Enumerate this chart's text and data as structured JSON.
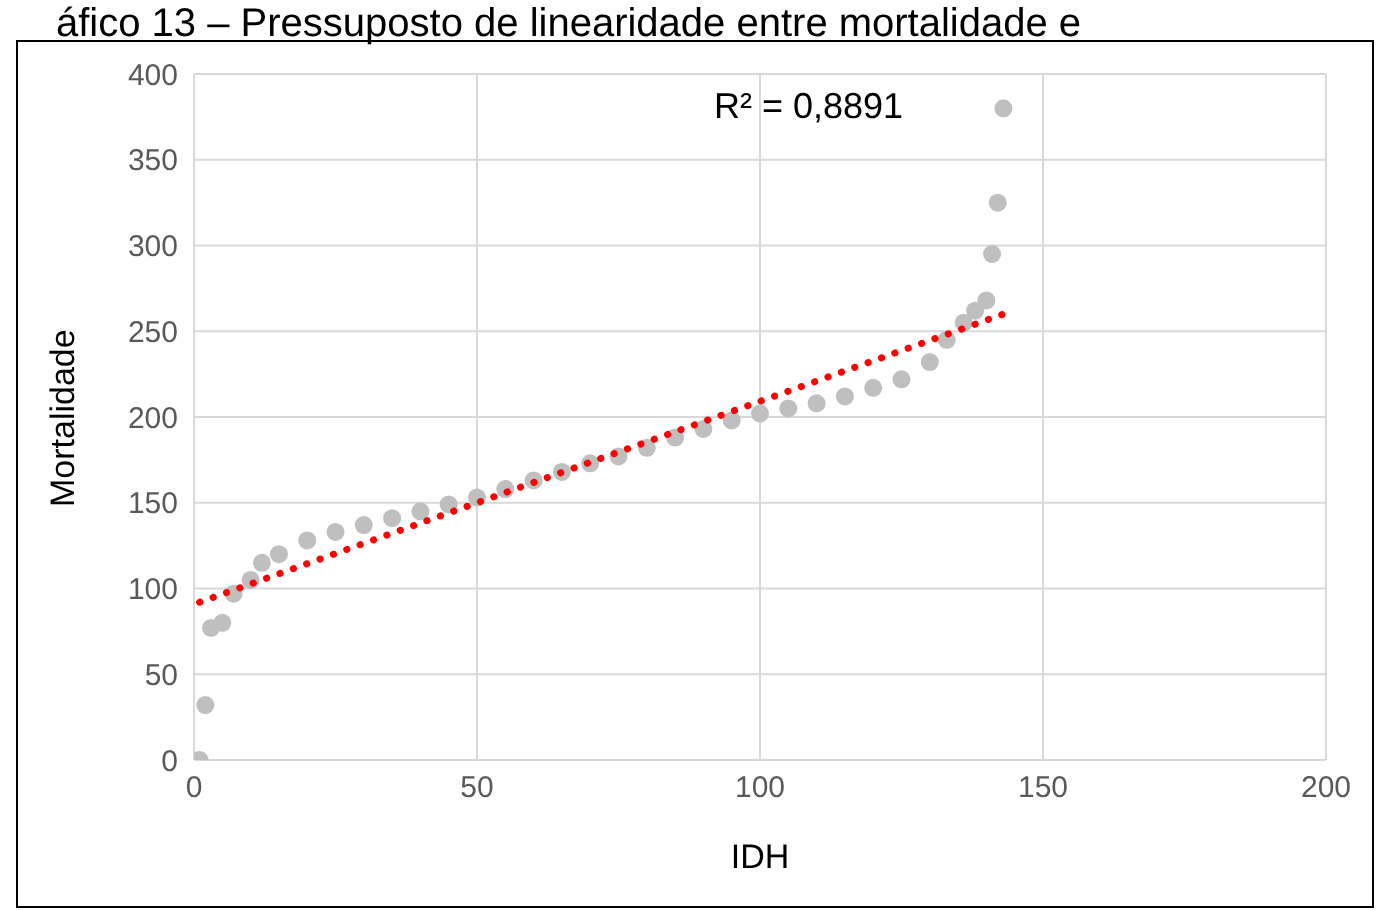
{
  "chart_data": {
    "type": "scatter",
    "title": "áfico 13 – Pressuposto de linearidade entre mortalidade e",
    "xlabel": "IDH",
    "ylabel": "Mortalidade",
    "annotations": [
      "R² = 0,8891"
    ],
    "xlim": [
      0,
      200
    ],
    "xticks": [
      0,
      50,
      100,
      150,
      200
    ],
    "ylim": [
      0,
      400
    ],
    "yticks": [
      0,
      50,
      100,
      150,
      200,
      250,
      300,
      350,
      400
    ],
    "grid": true,
    "legend": false,
    "marker": "circle",
    "series": [
      {
        "color": "#bfbfbf",
        "x": [
          1,
          2,
          3,
          5,
          7,
          10,
          12,
          15,
          20,
          25,
          30,
          35,
          40,
          45,
          50,
          55,
          60,
          65,
          70,
          75,
          80,
          85,
          90,
          95,
          100,
          105,
          110,
          115,
          120,
          125,
          130,
          133,
          136,
          138,
          140,
          141,
          142,
          143
        ],
        "values": [
          0,
          32,
          77,
          80,
          97,
          105,
          115,
          120,
          128,
          133,
          137,
          141,
          145,
          149,
          153,
          158,
          163,
          168,
          173,
          177,
          182,
          188,
          193,
          198,
          202,
          205,
          208,
          212,
          217,
          222,
          232,
          245,
          255,
          262,
          268,
          295,
          325,
          380
        ]
      },
      {
        "type": "line",
        "color": "#ff0000",
        "line_style": "dotted",
        "marker": "none",
        "x": [
          1,
          143
        ],
        "values": [
          92,
          260
        ]
      }
    ]
  }
}
